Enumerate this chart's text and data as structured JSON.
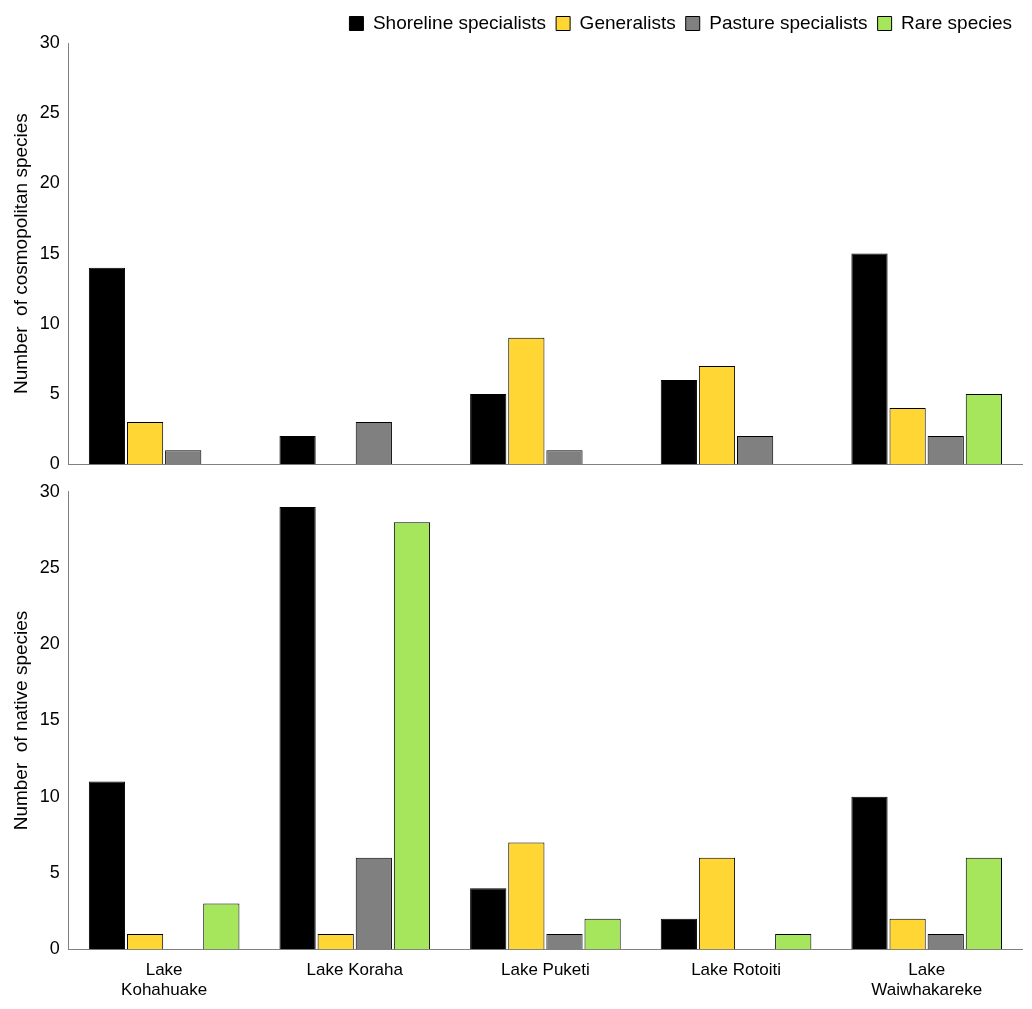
{
  "chart_data": [
    {
      "type": "bar",
      "ylabel": "Number  of cosmopolitan species",
      "categories": [
        null,
        null,
        null,
        null,
        null
      ],
      "tick_labels": "y",
      "legend": "top",
      "grid": false,
      "ylim": [
        0,
        30
      ],
      "yticks": [
        0,
        5,
        10,
        15,
        20,
        25,
        30
      ],
      "series": [
        {
          "name": "Shoreline specialists",
          "color": "#000000",
          "values": [
            14,
            2,
            5,
            6,
            15
          ]
        },
        {
          "name": "Generalists",
          "color": "#ffd633",
          "values": [
            3,
            0,
            9,
            7,
            4
          ]
        },
        {
          "name": "Pasture specialists",
          "color": "#808080",
          "values": [
            1,
            3,
            1,
            2,
            2
          ]
        },
        {
          "name": "Rare species",
          "color": "#a6e65c",
          "values": [
            0,
            0,
            0,
            0,
            5
          ]
        }
      ]
    },
    {
      "type": "bar",
      "ylabel": "Number  of native species",
      "categories": [
        "Lake Kohahuake",
        "Lake Koraha",
        "Lake Puketi",
        "Lake Rotoiti",
        "Lake Waiwhakareke"
      ],
      "grid": false,
      "ylim": [
        0,
        30
      ],
      "yticks": [
        0,
        5,
        10,
        15,
        20,
        25,
        30
      ],
      "series": [
        {
          "color": "#000000",
          "values": [
            11,
            29,
            4,
            2,
            10
          ]
        },
        {
          "color": "#ffd633",
          "values": [
            1,
            1,
            7,
            6,
            2
          ]
        },
        {
          "color": "#808080",
          "values": [
            0,
            6,
            1,
            0,
            1
          ]
        },
        {
          "color": "#a6e65c",
          "values": [
            3,
            28,
            2,
            1,
            6
          ]
        }
      ]
    }
  ]
}
